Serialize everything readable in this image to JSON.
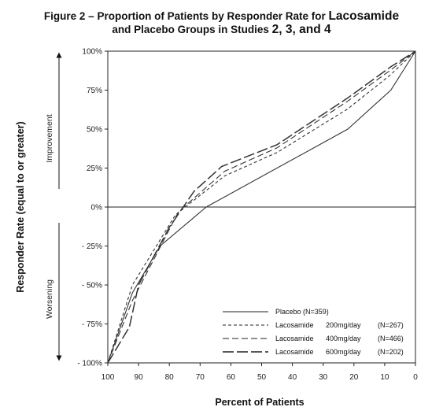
{
  "title": {
    "line1_a": "Figure 2 – Proportion of Patients by Responder Rate for ",
    "line1_b": "Lacosamide",
    "line2_a": "and Placebo Groups in Studies ",
    "line2_b": "2, 3, and 4"
  },
  "chart_data": {
    "type": "line",
    "xlabel": "Percent of Patients",
    "ylabel": "Responder Rate (equal to or greater)",
    "side_labels": {
      "upper": "Improvement",
      "lower": "Worsening"
    },
    "x_ticks": [
      "100",
      "90",
      "80",
      "70",
      "60",
      "50",
      "40",
      "30",
      "20",
      "10",
      "0"
    ],
    "y_ticks": [
      "100%",
      "75%",
      "50%",
      "25%",
      "0%",
      "- 25%",
      "- 50%",
      "- 75%",
      "- 100%"
    ],
    "xlim": [
      100,
      0
    ],
    "ylim": [
      -100,
      100
    ],
    "grid": false,
    "reference_line_y": 0,
    "legend_position": "bottom-right",
    "series": [
      {
        "name": "Placebo (N=359)",
        "legend_name": "Placebo",
        "legend_n": "(N=359)",
        "legend_dose": "",
        "dash": "solid",
        "x": [
          100,
          92,
          83,
          68,
          22,
          8,
          0
        ],
        "y": [
          -100,
          -55,
          -25,
          0,
          50,
          75,
          100
        ]
      },
      {
        "name": "Lacosamide 200mg/day (N=267)",
        "legend_name": "Lacosamide",
        "legend_dose": "200mg/day",
        "legend_n": "(N=267)",
        "dash": "short",
        "x": [
          100,
          92,
          78,
          62,
          45,
          22,
          8,
          0
        ],
        "y": [
          -100,
          -50,
          -5,
          20,
          35,
          63,
          85,
          100
        ]
      },
      {
        "name": "Lacosamide 400mg/day (N=466)",
        "legend_name": "Lacosamide",
        "legend_dose": "400mg/day",
        "legend_n": "(N=466)",
        "dash": "medium",
        "x": [
          100,
          92,
          77,
          62,
          45,
          22,
          8,
          0
        ],
        "y": [
          -100,
          -60,
          -3,
          23,
          38,
          68,
          88,
          100
        ]
      },
      {
        "name": "Lacosamide 600mg/day (N=202)",
        "legend_name": "Lacosamide",
        "legend_dose": "600mg/day",
        "legend_n": "(N=202)",
        "dash": "long",
        "x": [
          100,
          93,
          90,
          80,
          72,
          63,
          45,
          22,
          8,
          0
        ],
        "y": [
          -100,
          -77,
          -50,
          -13,
          10,
          26,
          40,
          70,
          90,
          100
        ]
      }
    ]
  }
}
